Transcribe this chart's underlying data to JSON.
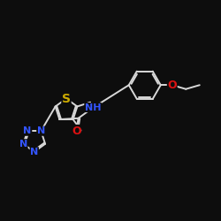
{
  "background_color": "#0d0d0d",
  "bond_color": "#d8d8d8",
  "S_color": "#ccaa00",
  "N_color": "#3355ff",
  "O_color": "#dd1111",
  "font_size": 8,
  "lw": 1.4,
  "figsize": [
    2.5,
    2.5
  ],
  "dpi": 100,
  "xlim": [
    0.0,
    10.0
  ],
  "ylim": [
    0.5,
    8.5
  ]
}
